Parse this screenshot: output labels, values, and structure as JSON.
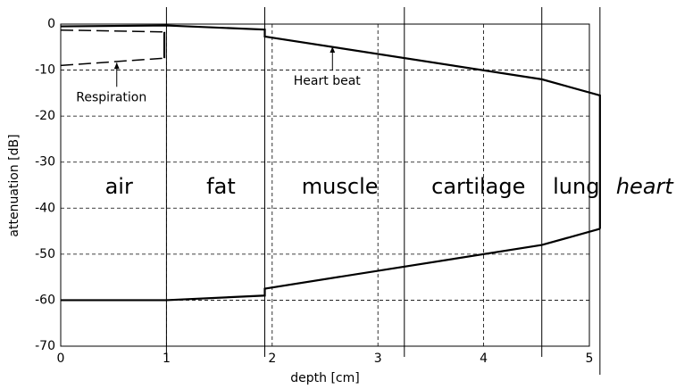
{
  "chart_data": {
    "type": "line",
    "xlabel": "depth [cm]",
    "ylabel": "attenuation [dB]",
    "xlim": [
      0,
      5
    ],
    "ylim": [
      -70,
      0
    ],
    "xticks": [
      0,
      1,
      2,
      3,
      4,
      5
    ],
    "yticks": [
      0,
      -10,
      -20,
      -30,
      -40,
      -50,
      -60,
      -70
    ],
    "grid": true,
    "series": [
      {
        "color": "#000000",
        "style": "solid",
        "x": [
          0,
          1,
          1.93,
          1.93,
          4.55,
          5.1,
          5.1
        ],
        "values": [
          -0.5,
          -0.3,
          -1.2,
          -2.7,
          -12,
          -15.5,
          -44.5
        ]
      },
      {
        "color": "#000000",
        "style": "solid",
        "x": [
          0,
          1,
          1.93,
          1.93,
          4.55,
          5.1
        ],
        "values": [
          -60,
          -60,
          -59,
          -57.5,
          -48,
          -44.5
        ]
      },
      {
        "color": "#000000",
        "style": "dashed",
        "x": [
          0,
          0.98
        ],
        "values": [
          -1.3,
          -1.7
        ]
      },
      {
        "color": "#000000",
        "style": "dashed",
        "x": [
          0,
          0.98
        ],
        "values": [
          -9,
          -7.4
        ]
      },
      {
        "color": "#000000",
        "style": "solid",
        "x": [
          0.98,
          0.98
        ],
        "values": [
          -1.7,
          -7.4
        ]
      }
    ],
    "regions": [
      {
        "label": "air",
        "start": 0,
        "end": 1
      },
      {
        "label": "fat",
        "start": 1,
        "end": 1.93
      },
      {
        "label": "muscle",
        "start": 1.93,
        "end": 3.25
      },
      {
        "label": "cartilage",
        "start": 3.25,
        "end": 4.55
      },
      {
        "label": "lung",
        "start": 4.55,
        "end": 5.1
      },
      {
        "label": "heart",
        "start": 5.1
      }
    ],
    "annotations": [
      {
        "text": "Respiration",
        "x": 0.53,
        "y": -8.2
      },
      {
        "text": "Heart beat",
        "x": 2.57,
        "y": -4.7
      }
    ]
  }
}
